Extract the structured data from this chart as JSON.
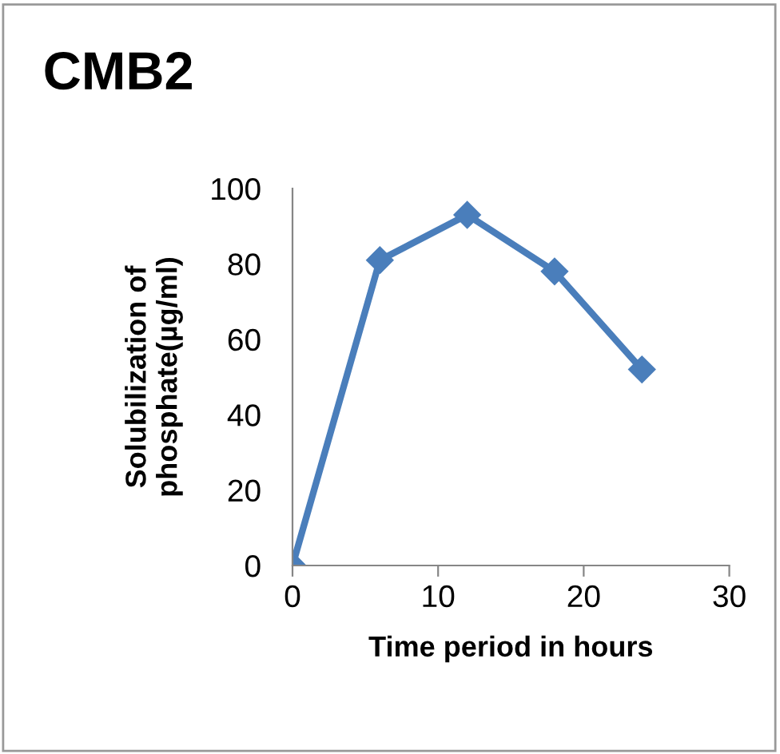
{
  "chart_data": {
    "type": "line",
    "title": "CMB2",
    "xlabel": "Time period in hours",
    "ylabel": "Solubilization of\nphosphate(µg/ml)",
    "x": [
      0,
      6,
      12,
      18,
      24
    ],
    "series": [
      {
        "color": "#4a7ebb",
        "values": [
          0,
          81,
          93,
          78,
          52
        ]
      }
    ],
    "xlim": [
      0,
      30
    ],
    "xticks": [
      0,
      10,
      20,
      30
    ],
    "ylim": [
      0,
      100
    ],
    "yticks": [
      0,
      20,
      40,
      60,
      80,
      100
    ],
    "grid": false,
    "legend": false,
    "marker": "diamond",
    "line_style": "solid"
  }
}
